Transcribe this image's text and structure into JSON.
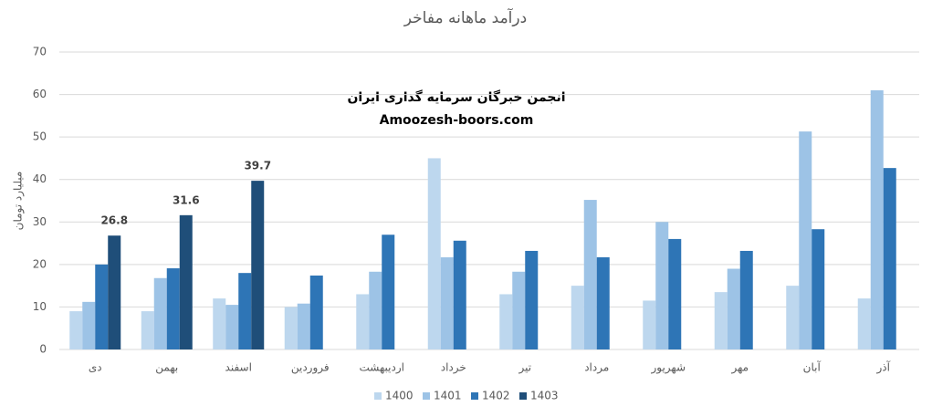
{
  "chart_data": {
    "type": "bar",
    "title": "درآمد ماهانه مفاخر",
    "y_label": "میلیارد تومان",
    "annotations": [
      "انجمن خبرگان سرمایه گذاری ایران",
      "Amoozesh-boors.com"
    ],
    "categories": [
      "دی",
      "بهمن",
      "اسفند",
      "فروردین",
      "اردیبهشت",
      "خرداد",
      "تیر",
      "مرداد",
      "شهریور",
      "مهر",
      "آبان",
      "آذر"
    ],
    "series": [
      {
        "name": "1400",
        "color": "#bdd7ee",
        "values": [
          9,
          9,
          12,
          10,
          13,
          45,
          13,
          15,
          11.5,
          13.5,
          15,
          12
        ]
      },
      {
        "name": "1401",
        "color": "#9dc3e6",
        "values": [
          11.2,
          16.8,
          10.5,
          10.8,
          18.3,
          21.7,
          18.3,
          35.2,
          30,
          19,
          51.3,
          61
        ]
      },
      {
        "name": "1402",
        "color": "#2e75b6",
        "values": [
          20,
          19.1,
          18,
          17.4,
          27,
          25.6,
          23.2,
          21.7,
          26,
          23.2,
          28.3,
          42.7
        ]
      },
      {
        "name": "1403",
        "color": "#1f4e79",
        "values": [
          26.8,
          31.6,
          39.7,
          null,
          null,
          null,
          null,
          null,
          null,
          null,
          null,
          null
        ],
        "show_labels": true
      }
    ],
    "ylim": [
      0,
      70
    ],
    "yticks": [
      0,
      10,
      20,
      30,
      40,
      50,
      60,
      70
    ],
    "grid": true,
    "legend": "bottom"
  }
}
